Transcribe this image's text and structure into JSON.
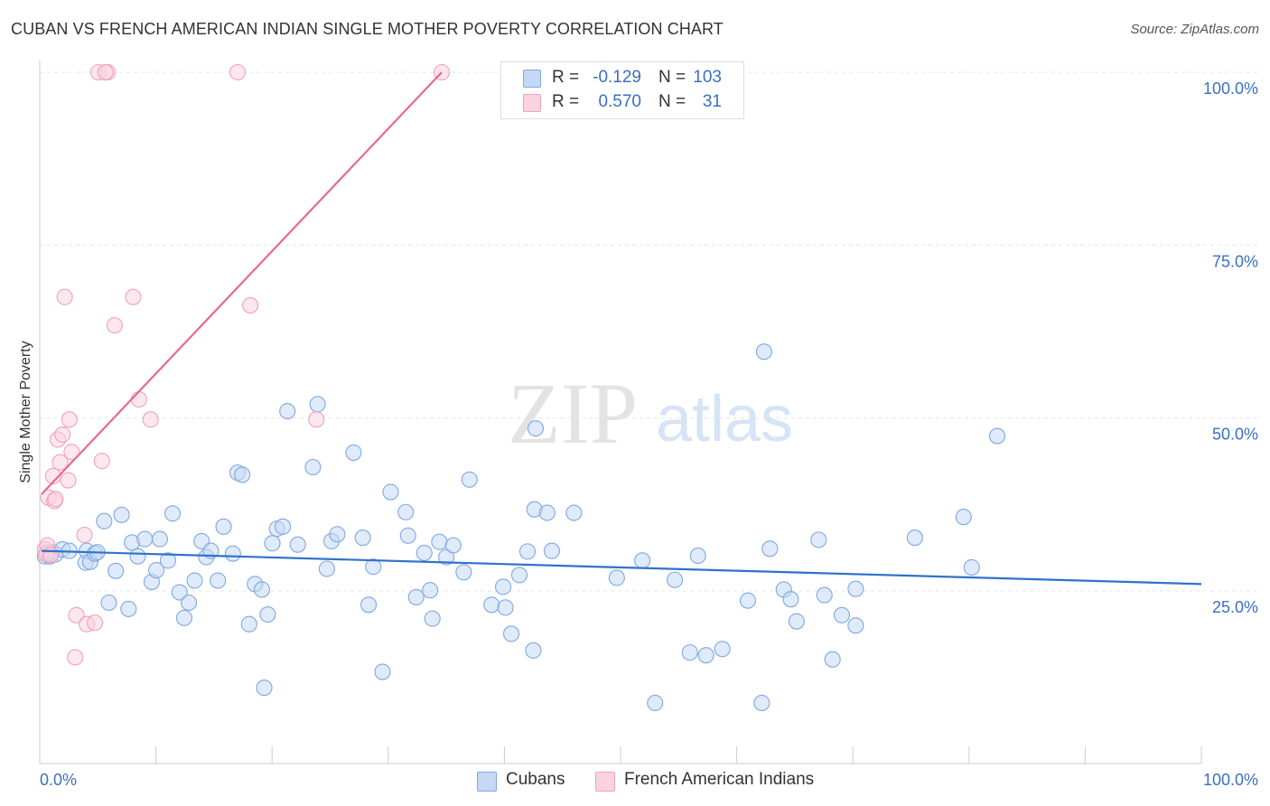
{
  "title": "CUBAN VS FRENCH AMERICAN INDIAN SINGLE MOTHER POVERTY CORRELATION CHART",
  "source": "Source: ZipAtlas.com",
  "watermark": {
    "zip": "ZIP",
    "atlas": "atlas"
  },
  "legend": {
    "r_label": "R =",
    "n_label": "N =",
    "rows": [
      {
        "r": "-0.129",
        "n": "103"
      },
      {
        "r": "0.570",
        "n": "31"
      }
    ]
  },
  "bottom_legend": [
    "Cubans",
    "French American Indians"
  ],
  "chart_data": {
    "type": "scatter",
    "title": "CUBAN VS FRENCH AMERICAN INDIAN SINGLE MOTHER POVERTY CORRELATION CHART",
    "xlabel": "",
    "ylabel": "Single Mother Poverty",
    "xlim": [
      0,
      100
    ],
    "ylim": [
      0,
      102
    ],
    "x_tick_labels": [
      "0.0%",
      "100.0%"
    ],
    "y_ticks": [
      25,
      50,
      75,
      100
    ],
    "y_tick_labels": [
      "25.0%",
      "50.0%",
      "75.0%",
      "100.0%"
    ],
    "grid": true,
    "legend_position": "top-center",
    "series": [
      {
        "name": "Cubans",
        "color": "#7fa8e0",
        "fill": "#c5d9f5",
        "trend_color": "#2f72c9",
        "trend": {
          "x": [
            0,
            100
          ],
          "y": [
            30.8,
            26.0
          ]
        },
        "points": [
          [
            0.3,
            30.0
          ],
          [
            0.5,
            30.6
          ],
          [
            0.7,
            30.0
          ],
          [
            0.9,
            30.6
          ],
          [
            1.2,
            30.3
          ],
          [
            1.8,
            31.0
          ],
          [
            2.4,
            30.8
          ],
          [
            3.8,
            29.1
          ],
          [
            3.9,
            30.8
          ],
          [
            4.2,
            29.2
          ],
          [
            4.6,
            30.4
          ],
          [
            4.8,
            30.6
          ],
          [
            5.4,
            35.1
          ],
          [
            5.8,
            23.3
          ],
          [
            6.4,
            27.9
          ],
          [
            6.9,
            36.0
          ],
          [
            7.5,
            22.4
          ],
          [
            7.8,
            32.0
          ],
          [
            8.3,
            30.0
          ],
          [
            8.9,
            32.5
          ],
          [
            9.5,
            26.3
          ],
          [
            9.9,
            28.0
          ],
          [
            10.2,
            32.5
          ],
          [
            10.9,
            29.4
          ],
          [
            11.3,
            36.2
          ],
          [
            11.9,
            24.8
          ],
          [
            12.3,
            21.1
          ],
          [
            12.7,
            23.3
          ],
          [
            13.2,
            26.5
          ],
          [
            13.8,
            32.2
          ],
          [
            14.2,
            29.9
          ],
          [
            14.6,
            30.8
          ],
          [
            15.2,
            26.5
          ],
          [
            15.7,
            34.3
          ],
          [
            16.5,
            30.4
          ],
          [
            16.9,
            42.1
          ],
          [
            17.3,
            41.8
          ],
          [
            17.9,
            20.2
          ],
          [
            18.4,
            26.0
          ],
          [
            19.0,
            25.2
          ],
          [
            19.2,
            11.0
          ],
          [
            19.5,
            21.6
          ],
          [
            19.9,
            31.9
          ],
          [
            20.3,
            34.0
          ],
          [
            20.8,
            34.3
          ],
          [
            21.2,
            51.0
          ],
          [
            22.1,
            31.7
          ],
          [
            23.4,
            42.9
          ],
          [
            23.8,
            52.0
          ],
          [
            24.6,
            28.2
          ],
          [
            25.0,
            32.2
          ],
          [
            25.5,
            33.2
          ],
          [
            26.9,
            45.0
          ],
          [
            27.7,
            32.7
          ],
          [
            28.2,
            23.0
          ],
          [
            28.6,
            28.5
          ],
          [
            29.4,
            13.3
          ],
          [
            30.1,
            39.3
          ],
          [
            31.4,
            36.4
          ],
          [
            31.6,
            33.0
          ],
          [
            32.3,
            24.1
          ],
          [
            33.0,
            30.5
          ],
          [
            33.7,
            21.0
          ],
          [
            33.5,
            25.1
          ],
          [
            34.3,
            32.1
          ],
          [
            34.9,
            29.9
          ],
          [
            35.5,
            31.6
          ],
          [
            36.4,
            27.7
          ],
          [
            36.9,
            41.1
          ],
          [
            38.8,
            23.0
          ],
          [
            39.8,
            25.6
          ],
          [
            40.0,
            22.6
          ],
          [
            40.5,
            18.8
          ],
          [
            41.2,
            27.3
          ],
          [
            41.9,
            30.7
          ],
          [
            42.4,
            16.4
          ],
          [
            42.5,
            36.8
          ],
          [
            42.6,
            48.5
          ],
          [
            43.6,
            36.3
          ],
          [
            44.0,
            30.8
          ],
          [
            45.9,
            36.3
          ],
          [
            49.6,
            26.9
          ],
          [
            51.8,
            29.4
          ],
          [
            52.9,
            8.8
          ],
          [
            54.6,
            26.6
          ],
          [
            55.9,
            16.1
          ],
          [
            56.6,
            30.1
          ],
          [
            57.3,
            15.7
          ],
          [
            58.7,
            16.6
          ],
          [
            60.9,
            23.6
          ],
          [
            62.3,
            59.6
          ],
          [
            62.1,
            8.8
          ],
          [
            62.8,
            31.1
          ],
          [
            64.0,
            25.2
          ],
          [
            64.6,
            23.8
          ],
          [
            65.1,
            20.6
          ],
          [
            67.0,
            32.4
          ],
          [
            67.5,
            24.4
          ],
          [
            68.2,
            15.1
          ],
          [
            69.0,
            21.5
          ],
          [
            70.2,
            20.0
          ],
          [
            70.2,
            25.3
          ],
          [
            75.3,
            32.7
          ],
          [
            79.5,
            35.7
          ],
          [
            80.2,
            28.4
          ],
          [
            82.4,
            47.4
          ]
        ]
      },
      {
        "name": "French American Indians",
        "color": "#f0a0bc",
        "fill": "#fbd3e0",
        "trend_color": "#e8698f",
        "trend": {
          "x": [
            0,
            34.5
          ],
          "y": [
            39.0,
            100.0
          ]
        },
        "points": [
          [
            0.3,
            31.0
          ],
          [
            0.4,
            30.3
          ],
          [
            0.5,
            31.6
          ],
          [
            0.6,
            38.5
          ],
          [
            0.8,
            30.2
          ],
          [
            1.0,
            41.6
          ],
          [
            1.1,
            38.0
          ],
          [
            1.2,
            38.3
          ],
          [
            1.4,
            46.9
          ],
          [
            1.6,
            43.6
          ],
          [
            1.8,
            47.6
          ],
          [
            2.0,
            67.5
          ],
          [
            2.3,
            41.0
          ],
          [
            2.4,
            49.8
          ],
          [
            2.6,
            45.1
          ],
          [
            2.9,
            15.4
          ],
          [
            3.0,
            21.5
          ],
          [
            3.7,
            33.1
          ],
          [
            3.9,
            20.2
          ],
          [
            4.6,
            20.4
          ],
          [
            5.2,
            43.8
          ],
          [
            4.9,
            100.0
          ],
          [
            5.7,
            100.0
          ],
          [
            5.5,
            100.0
          ],
          [
            6.3,
            63.4
          ],
          [
            7.9,
            67.5
          ],
          [
            8.4,
            52.7
          ],
          [
            9.4,
            49.8
          ],
          [
            16.9,
            100.0
          ],
          [
            18.0,
            66.3
          ],
          [
            23.7,
            49.8
          ],
          [
            34.5,
            100.0
          ]
        ]
      }
    ]
  }
}
